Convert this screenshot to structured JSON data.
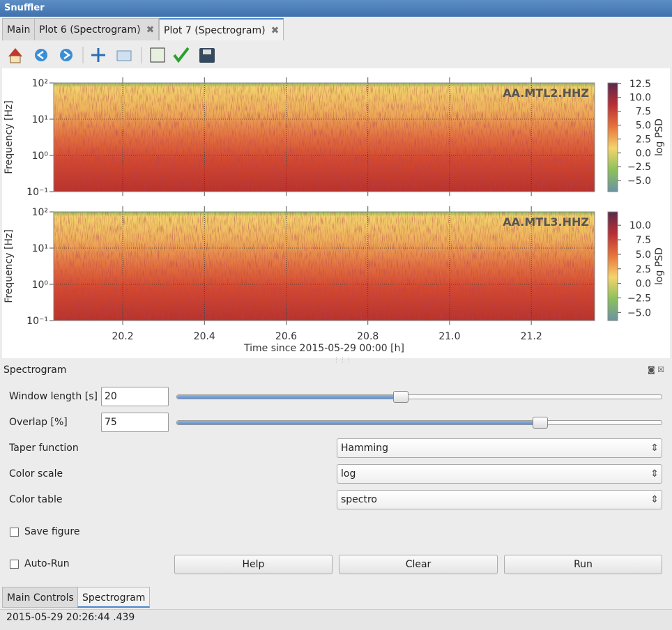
{
  "window_title": "Snuffler",
  "tabs": [
    "Main",
    "Plot 6 (Spectrogram)",
    "Plot 7 (Spectrogram)"
  ],
  "plots": {
    "x_label": "Time since 2015-05-29 00:00 [h]",
    "xlim": [
      20.031,
      21.355
    ],
    "xticks": [
      20.2,
      20.4,
      20.6,
      20.8,
      {
        "value": 21,
        "label": "21.0"
      },
      21.2
    ],
    "y_scale": "log",
    "panels": [
      {
        "station": "AA.MTL2.HHZ",
        "y_label": "Frequency [Hz]",
        "ylim": [
          0.1,
          100
        ],
        "yticks": [
          {
            "value": 0.1,
            "label": "10⁻¹"
          },
          {
            "value": 1,
            "label": "10⁰"
          },
          {
            "value": 10,
            "label": "10¹"
          },
          {
            "value": 100,
            "label": "10²"
          }
        ],
        "colorbar_label": "log PSD",
        "clim": [
          -7,
          12.6
        ],
        "cticks": [
          {
            "value": 12.5,
            "label": "12.5"
          },
          {
            "value": 10,
            "label": "10.0"
          },
          {
            "value": 7.5,
            "label": "7.5"
          },
          {
            "value": 5,
            "label": "5.0"
          },
          {
            "value": 2.5,
            "label": "2.5"
          },
          {
            "value": 0,
            "label": "0.0"
          },
          {
            "value": -2.5,
            "label": "−2.5"
          },
          {
            "value": -5,
            "label": "−5.0"
          }
        ]
      },
      {
        "station": "AA.MTL3.HHZ",
        "y_label": "Frequency [Hz]",
        "ylim": [
          0.1,
          100
        ],
        "yticks": [
          {
            "value": 0.1,
            "label": "10⁻¹"
          },
          {
            "value": 1,
            "label": "10⁰"
          },
          {
            "value": 10,
            "label": "10¹"
          },
          {
            "value": 100,
            "label": "10²"
          }
        ],
        "colorbar_label": "log PSD",
        "clim": [
          -6.4,
          12.3
        ],
        "cticks": [
          {
            "value": 10,
            "label": "10.0"
          },
          {
            "value": 7.5,
            "label": "7.5"
          },
          {
            "value": 5,
            "label": "5.0"
          },
          {
            "value": 2.5,
            "label": "2.5"
          },
          {
            "value": 0,
            "label": "0.0"
          },
          {
            "value": -2.5,
            "label": "−2.5"
          },
          {
            "value": -5,
            "label": "−5.0"
          }
        ]
      }
    ]
  },
  "panel": {
    "title": "Spectrogram",
    "fields": [
      {
        "label": "Window length [s]",
        "value": "20"
      },
      {
        "label": "Overlap [%]",
        "value": "75"
      }
    ],
    "choices": [
      {
        "label": "Taper function",
        "value": "Hamming"
      },
      {
        "label": "Color scale",
        "value": "log"
      },
      {
        "label": "Color table",
        "value": "spectro"
      }
    ],
    "checkboxes": [
      "Save figure",
      "Auto-Run"
    ],
    "buttons": [
      "Help",
      "Clear",
      "Run"
    ]
  },
  "bottom_tabs": [
    "Main Controls",
    "Spectrogram"
  ],
  "status": "2015-05-29 20:26:44 .439"
}
